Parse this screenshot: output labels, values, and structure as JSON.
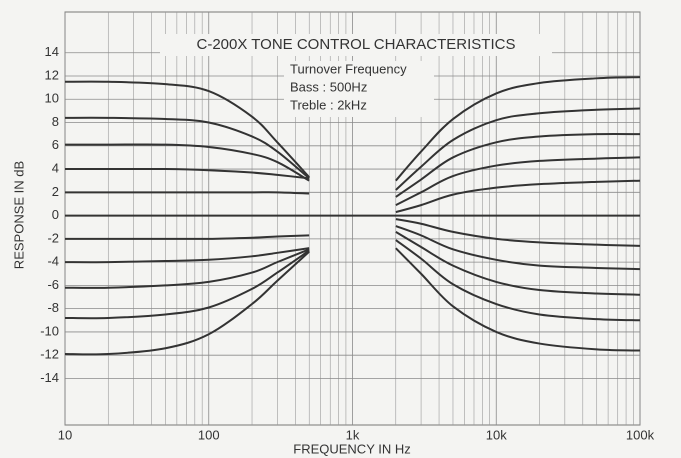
{
  "chart_data": {
    "type": "line",
    "title": "C-200X TONE CONTROL CHARACTERISTICS",
    "annotations": [
      "Turnover Frequency",
      "Bass : 500Hz",
      "Treble : 2kHz"
    ],
    "xlabel": "FREQUENCY IN Hz",
    "ylabel": "RESPONSE IN dB",
    "xscale": "log",
    "grid": true,
    "minor_grid": true,
    "xlim": [
      10,
      100000
    ],
    "xticks": [
      10,
      100,
      {
        "value": 1000,
        "label": "1k"
      },
      {
        "value": 10000,
        "label": "10k"
      },
      {
        "value": 100000,
        "label": "100k"
      }
    ],
    "ylim": [
      -18,
      17.5
    ],
    "yticks": [
      -14,
      -12,
      -10,
      -8,
      -6,
      -4,
      -2,
      0,
      2,
      4,
      6,
      8,
      10,
      12,
      14
    ],
    "series": [
      {
        "color": "#333333",
        "x": [
          10,
          20,
          50,
          100,
          200,
          300,
          500
        ],
        "values": [
          11.5,
          11.5,
          11.3,
          10.7,
          8.5,
          6.3,
          3.3
        ]
      },
      {
        "color": "#333333",
        "x": [
          10,
          20,
          50,
          100,
          200,
          300,
          500
        ],
        "values": [
          8.4,
          8.4,
          8.3,
          8.0,
          6.8,
          5.5,
          3.2
        ]
      },
      {
        "color": "#333333",
        "x": [
          10,
          20,
          50,
          100,
          200,
          300,
          500
        ],
        "values": [
          6.1,
          6.1,
          6.1,
          5.9,
          5.3,
          4.6,
          3.0
        ]
      },
      {
        "color": "#333333",
        "x": [
          10,
          20,
          50,
          100,
          200,
          300,
          500
        ],
        "values": [
          4,
          4,
          4,
          3.9,
          3.7,
          3.5,
          3.2
        ]
      },
      {
        "color": "#333333",
        "x": [
          10,
          20,
          50,
          100,
          200,
          300,
          500
        ],
        "values": [
          2,
          2,
          2,
          2,
          2,
          2,
          1.9
        ]
      },
      {
        "color": "#333333",
        "x": [
          10,
          100000
        ],
        "values": [
          0,
          0
        ]
      },
      {
        "color": "#333333",
        "x": [
          10,
          20,
          50,
          100,
          200,
          300,
          500
        ],
        "values": [
          -2,
          -2,
          -2,
          -2,
          -1.9,
          -1.8,
          -1.7
        ]
      },
      {
        "color": "#333333",
        "x": [
          10,
          20,
          50,
          100,
          200,
          300,
          500
        ],
        "values": [
          -4,
          -4,
          -3.9,
          -3.8,
          -3.5,
          -3.2,
          -2.8
        ]
      },
      {
        "color": "#333333",
        "x": [
          10,
          20,
          50,
          100,
          200,
          300,
          500
        ],
        "values": [
          -6.2,
          -6.2,
          -6.0,
          -5.7,
          -4.9,
          -4.0,
          -2.9
        ]
      },
      {
        "color": "#333333",
        "x": [
          10,
          20,
          50,
          100,
          200,
          300,
          500
        ],
        "values": [
          -8.8,
          -8.8,
          -8.5,
          -7.9,
          -6.3,
          -4.9,
          -3.0
        ]
      },
      {
        "color": "#333333",
        "x": [
          10,
          20,
          50,
          100,
          200,
          300,
          500
        ],
        "values": [
          -11.9,
          -11.9,
          -11.4,
          -10.2,
          -7.6,
          -5.6,
          -3.1
        ]
      },
      {
        "color": "#333333",
        "x": [
          2000,
          3000,
          5000,
          10000,
          20000,
          50000,
          100000
        ],
        "values": [
          3.0,
          5.5,
          8.3,
          10.5,
          11.4,
          11.8,
          11.9
        ]
      },
      {
        "color": "#333333",
        "x": [
          2000,
          3000,
          5000,
          10000,
          20000,
          50000,
          100000
        ],
        "values": [
          2.2,
          4.2,
          6.5,
          8.2,
          8.8,
          9.1,
          9.2
        ]
      },
      {
        "color": "#333333",
        "x": [
          2000,
          3000,
          5000,
          10000,
          20000,
          50000,
          100000
        ],
        "values": [
          1.6,
          3.1,
          5.0,
          6.3,
          6.8,
          7.0,
          7.0
        ]
      },
      {
        "color": "#333333",
        "x": [
          2000,
          3000,
          5000,
          10000,
          20000,
          50000,
          100000
        ],
        "values": [
          0.9,
          2.0,
          3.4,
          4.3,
          4.7,
          4.9,
          5.0
        ]
      },
      {
        "color": "#333333",
        "x": [
          2000,
          3000,
          5000,
          10000,
          20000,
          50000,
          100000
        ],
        "values": [
          0.3,
          0.9,
          1.8,
          2.4,
          2.7,
          2.9,
          3.0
        ]
      },
      {
        "color": "#333333",
        "x": [
          2000,
          3000,
          5000,
          10000,
          20000,
          50000,
          100000
        ],
        "values": [
          -0.3,
          -0.7,
          -1.4,
          -2.0,
          -2.3,
          -2.5,
          -2.6
        ]
      },
      {
        "color": "#333333",
        "x": [
          2000,
          3000,
          5000,
          10000,
          20000,
          50000,
          100000
        ],
        "values": [
          -0.9,
          -1.7,
          -2.9,
          -3.8,
          -4.3,
          -4.5,
          -4.6
        ]
      },
      {
        "color": "#333333",
        "x": [
          2000,
          3000,
          5000,
          10000,
          20000,
          50000,
          100000
        ],
        "values": [
          -1.4,
          -2.7,
          -4.3,
          -5.7,
          -6.4,
          -6.7,
          -6.8
        ]
      },
      {
        "color": "#333333",
        "x": [
          2000,
          3000,
          5000,
          10000,
          20000,
          50000,
          100000
        ],
        "values": [
          -2.1,
          -3.7,
          -5.9,
          -7.6,
          -8.5,
          -8.9,
          -9.0
        ]
      },
      {
        "color": "#333333",
        "x": [
          2000,
          3000,
          5000,
          10000,
          20000,
          50000,
          100000
        ],
        "values": [
          -2.8,
          -5.0,
          -7.8,
          -10.0,
          -11.0,
          -11.5,
          -11.6
        ]
      }
    ]
  }
}
